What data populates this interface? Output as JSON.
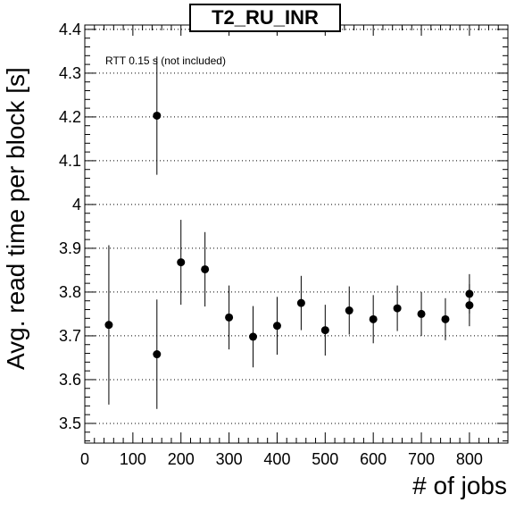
{
  "chart_data": {
    "type": "scatter",
    "title": "T2_RU_INR",
    "annotation": "RTT 0.15 s (not included)",
    "xlabel": "# of jobs",
    "ylabel": "Avg. read time per block [s]",
    "xlim": [
      0,
      880
    ],
    "ylim": [
      3.455,
      4.41
    ],
    "xticks": [
      0,
      100,
      200,
      300,
      400,
      500,
      600,
      700,
      800
    ],
    "yticks": [
      3.5,
      3.6,
      3.7,
      3.8,
      3.9,
      4.0,
      4.1,
      4.2,
      4.3,
      4.4
    ],
    "ytick_labels": [
      "3.5",
      "3.6",
      "3.7",
      "3.8",
      "3.9",
      "4",
      "4.1",
      "4.2",
      "4.3",
      "4.4"
    ],
    "grid": "horizontal dotted",
    "series": [
      {
        "x": [
          50,
          150,
          150,
          200,
          250,
          300,
          350,
          400,
          450,
          500,
          550,
          600,
          650,
          700,
          750,
          800,
          800
        ],
        "y": [
          3.725,
          3.658,
          4.203,
          3.868,
          3.852,
          3.742,
          3.698,
          3.723,
          3.775,
          3.713,
          3.758,
          3.738,
          3.763,
          3.75,
          3.738,
          3.77,
          3.796
        ],
        "err": [
          0.182,
          0.125,
          0.135,
          0.097,
          0.085,
          0.073,
          0.07,
          0.066,
          0.062,
          0.058,
          0.055,
          0.055,
          0.052,
          0.05,
          0.048,
          0.048,
          0.045
        ]
      }
    ]
  }
}
